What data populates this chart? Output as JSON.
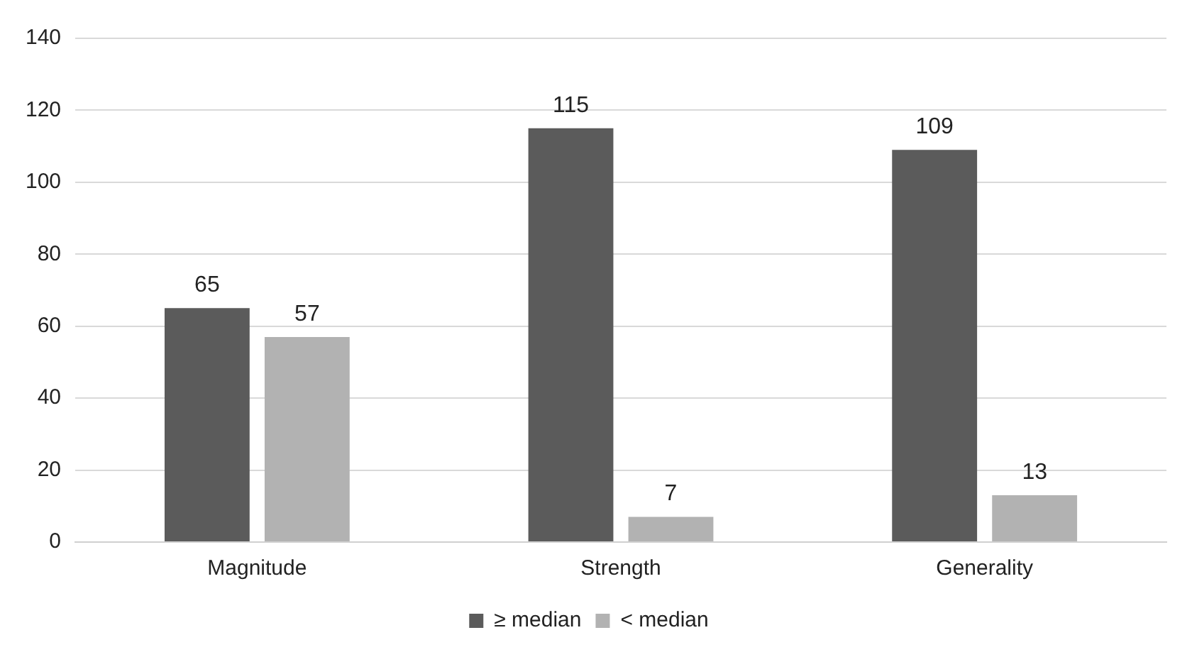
{
  "chart_data": {
    "type": "bar",
    "categories": [
      "Magnitude",
      "Strength",
      "Generality"
    ],
    "series": [
      {
        "name": "≥ median",
        "color": "#5b5b5b",
        "values": [
          65,
          115,
          109
        ]
      },
      {
        "name": "< median",
        "color": "#b2b2b2",
        "values": [
          57,
          7,
          13
        ]
      }
    ],
    "ylim": [
      0,
      140
    ],
    "yticks": [
      0,
      20,
      40,
      60,
      80,
      100,
      120,
      140
    ],
    "grid": "y",
    "legend": "bottom",
    "data_labels": true
  }
}
